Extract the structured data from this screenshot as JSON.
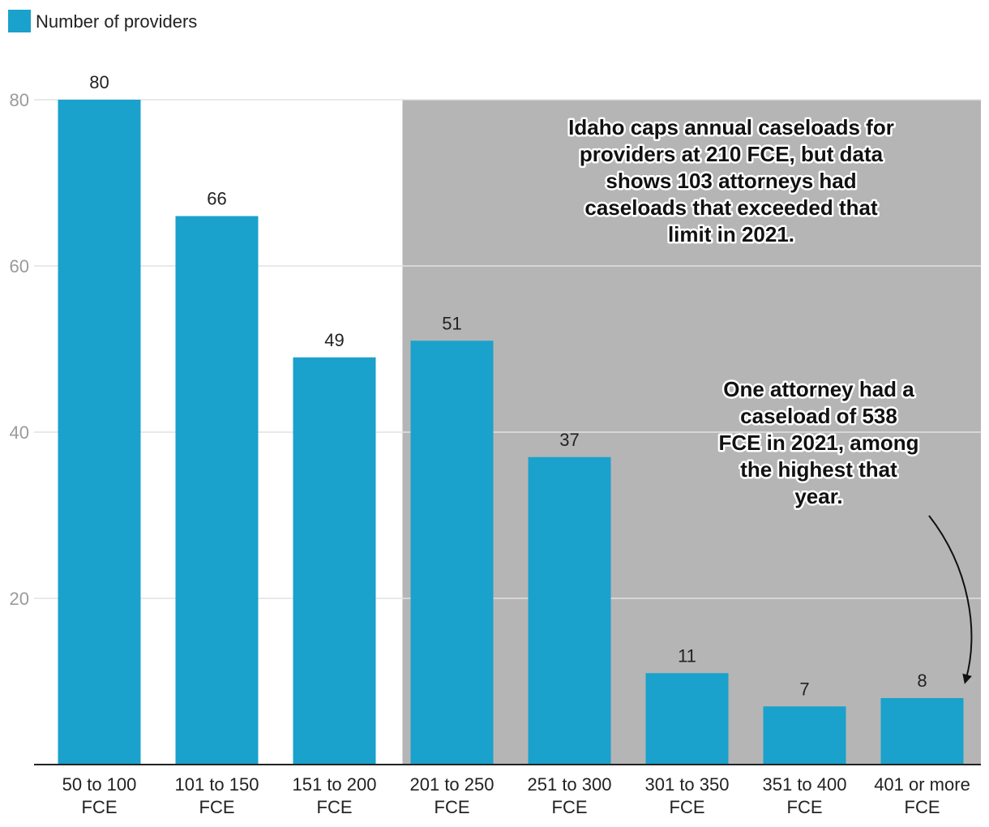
{
  "chart_data": {
    "type": "bar",
    "legend": {
      "position": "top-left",
      "entries": [
        "Number of providers"
      ]
    },
    "series": [
      {
        "name": "Number of providers",
        "color": "#1aa1cc",
        "values": [
          80,
          66,
          49,
          51,
          37,
          11,
          7,
          8
        ]
      }
    ],
    "categories": [
      [
        "50 to 100",
        "FCE"
      ],
      [
        "101 to 150",
        "FCE"
      ],
      [
        "151 to 200",
        "FCE"
      ],
      [
        "201 to 250",
        "FCE"
      ],
      [
        "251 to 300",
        "FCE"
      ],
      [
        "301 to 350",
        "FCE"
      ],
      [
        "351 to 400",
        "FCE"
      ],
      [
        "401 or more",
        "FCE"
      ]
    ],
    "ylim": [
      0,
      80
    ],
    "yticks": [
      20,
      40,
      60,
      80
    ],
    "grid": true,
    "highlight": {
      "from_category": "201 to 250",
      "to_category": "401 or more",
      "color": "#b5b5b5"
    },
    "annotations": [
      {
        "lines": [
          "Idaho caps annual caseloads for",
          "providers at 210 FCE, but data",
          "shows 103 attorneys had",
          "caseloads that exceeded that",
          "limit in 2021."
        ]
      },
      {
        "lines": [
          "One attorney had a",
          "caseload of 538",
          "FCE in 2021, among",
          "the highest that",
          "year."
        ],
        "arrow_to_category": "401 or more"
      }
    ]
  }
}
